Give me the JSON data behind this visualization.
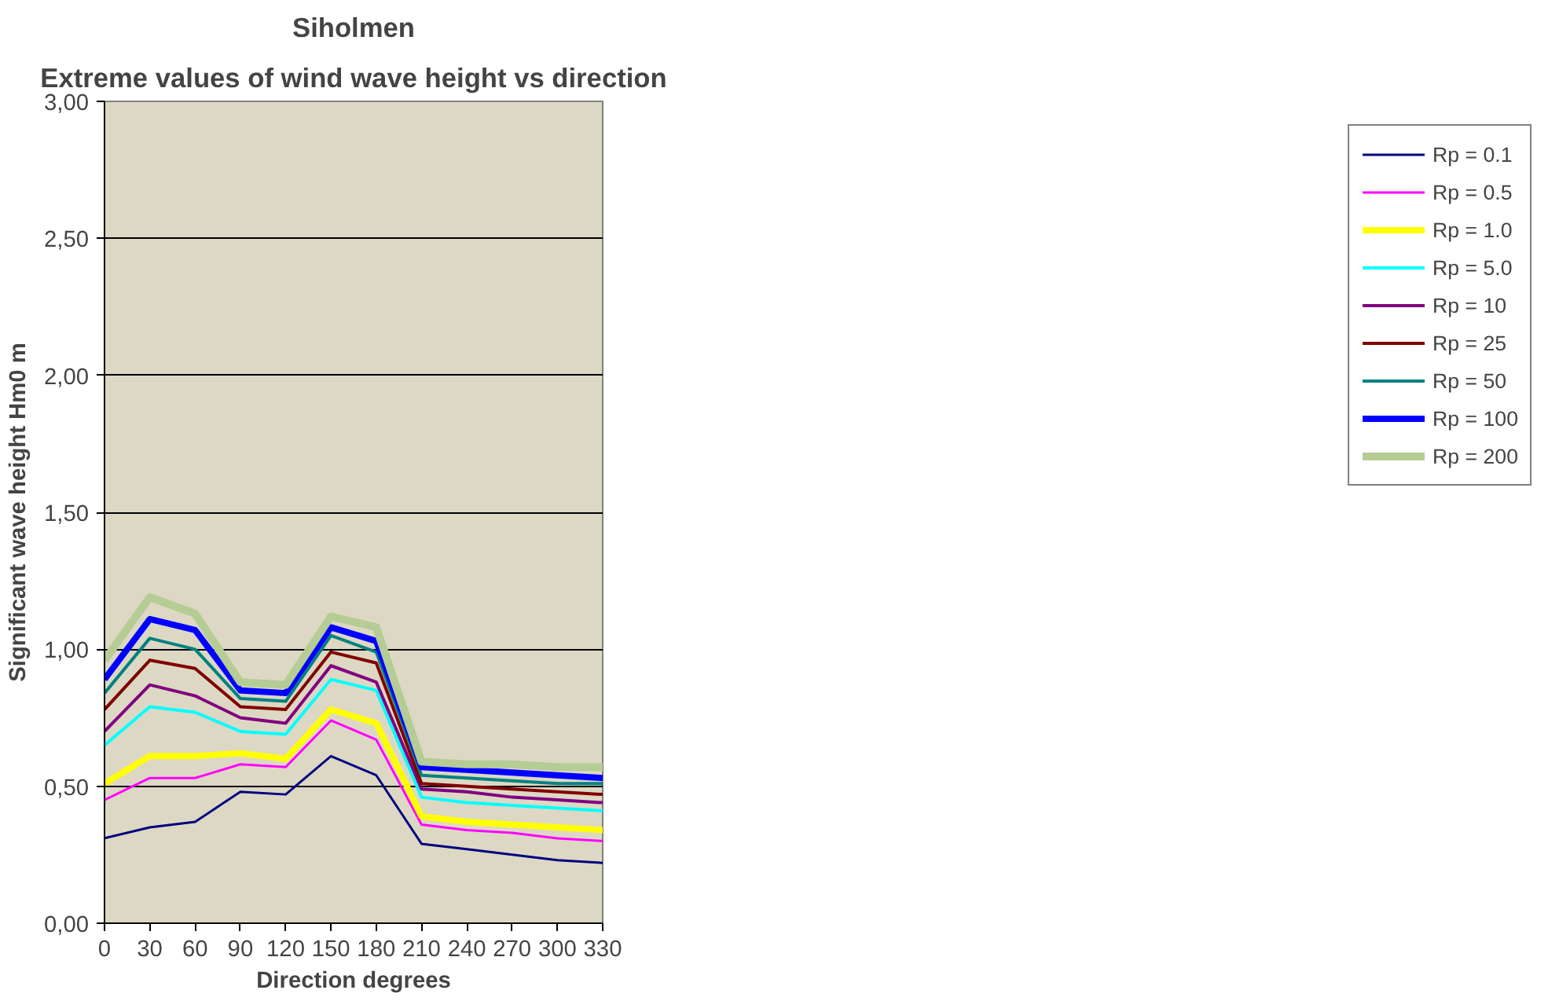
{
  "chart_data": {
    "type": "line",
    "title": "Siholmen",
    "subtitle": "Extreme values of wind wave height vs direction",
    "xlabel": "Direction degrees",
    "ylabel": "Significant wave height Hm0 m",
    "x": [
      0,
      30,
      60,
      90,
      120,
      150,
      180,
      210,
      240,
      270,
      300,
      330
    ],
    "xlim": [
      0,
      330
    ],
    "xticks": [
      0,
      30,
      60,
      90,
      120,
      150,
      180,
      210,
      240,
      270,
      300,
      330
    ],
    "ylim": [
      0,
      3
    ],
    "yticks": [
      {
        "value": 0,
        "label": "0,00"
      },
      {
        "value": 0.5,
        "label": "0,50"
      },
      {
        "value": 1,
        "label": "1,00"
      },
      {
        "value": 1.5,
        "label": "1,50"
      },
      {
        "value": 2,
        "label": "2,00"
      },
      {
        "value": 2.5,
        "label": "2,50"
      },
      {
        "value": 3,
        "label": "3,00"
      }
    ],
    "grid": "y",
    "legend": "right",
    "marker": "none",
    "line_style": "solid",
    "series": [
      {
        "name": "Rp = 0.1",
        "color": "#000080",
        "values": [
          0.31,
          0.35,
          0.37,
          0.48,
          0.47,
          0.61,
          0.54,
          0.29,
          0.27,
          0.25,
          0.23,
          0.22
        ]
      },
      {
        "name": "Rp = 0.5",
        "color": "#ff00ff",
        "values": [
          0.45,
          0.53,
          0.53,
          0.58,
          0.57,
          0.74,
          0.67,
          0.36,
          0.34,
          0.33,
          0.31,
          0.3
        ]
      },
      {
        "name": "Rp = 1.0",
        "color": "#ffff00",
        "values": [
          0.51,
          0.61,
          0.61,
          0.62,
          0.6,
          0.78,
          0.73,
          0.39,
          0.37,
          0.36,
          0.35,
          0.34
        ]
      },
      {
        "name": "Rp = 5.0",
        "color": "#00ffff",
        "values": [
          0.65,
          0.79,
          0.77,
          0.7,
          0.69,
          0.89,
          0.85,
          0.46,
          0.44,
          0.43,
          0.42,
          0.41
        ]
      },
      {
        "name": "Rp = 10",
        "color": "#800080",
        "values": [
          0.7,
          0.87,
          0.83,
          0.75,
          0.73,
          0.94,
          0.88,
          0.49,
          0.48,
          0.46,
          0.45,
          0.44
        ]
      },
      {
        "name": "Rp = 25",
        "color": "#800000",
        "values": [
          0.78,
          0.96,
          0.93,
          0.79,
          0.78,
          0.99,
          0.95,
          0.51,
          0.5,
          0.49,
          0.48,
          0.47
        ]
      },
      {
        "name": "Rp = 50",
        "color": "#008080",
        "values": [
          0.84,
          1.04,
          1.0,
          0.82,
          0.81,
          1.05,
          0.99,
          0.54,
          0.53,
          0.52,
          0.51,
          0.51
        ]
      },
      {
        "name": "Rp = 100",
        "color": "#0000ff",
        "values": [
          0.89,
          1.11,
          1.07,
          0.85,
          0.84,
          1.08,
          1.03,
          0.57,
          0.56,
          0.55,
          0.54,
          0.53
        ]
      },
      {
        "name": "Rp = 200",
        "color": "#b5cc95",
        "values": [
          0.96,
          1.19,
          1.13,
          0.88,
          0.87,
          1.12,
          1.08,
          0.59,
          0.58,
          0.58,
          0.57,
          0.57
        ]
      }
    ]
  }
}
